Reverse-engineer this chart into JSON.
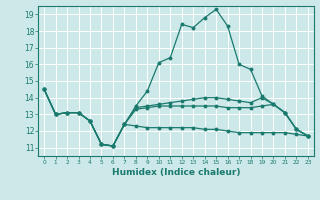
{
  "xlabel": "Humidex (Indice chaleur)",
  "xlim": [
    -0.5,
    23.5
  ],
  "ylim": [
    10.5,
    19.5
  ],
  "xticks": [
    0,
    1,
    2,
    3,
    4,
    5,
    6,
    7,
    8,
    9,
    10,
    11,
    12,
    13,
    14,
    15,
    16,
    17,
    18,
    19,
    20,
    21,
    22,
    23
  ],
  "yticks": [
    11,
    12,
    13,
    14,
    15,
    16,
    17,
    18,
    19
  ],
  "background_color": "#cde8e8",
  "grid_color": "#ffffff",
  "line_color": "#1a7a6e",
  "lines": [
    [
      14.5,
      13.0,
      13.1,
      13.1,
      12.6,
      11.2,
      11.1,
      12.4,
      13.5,
      14.4,
      16.1,
      16.4,
      18.4,
      18.2,
      18.8,
      19.3,
      18.3,
      16.0,
      15.7,
      14.1,
      13.6,
      13.1,
      12.1,
      11.7
    ],
    [
      14.5,
      13.0,
      13.1,
      13.1,
      12.6,
      11.2,
      11.1,
      12.4,
      13.4,
      13.5,
      13.6,
      13.7,
      13.8,
      13.9,
      14.0,
      14.0,
      13.9,
      13.8,
      13.7,
      14.0,
      13.6,
      13.1,
      12.1,
      11.7
    ],
    [
      14.5,
      13.0,
      13.1,
      13.1,
      12.6,
      11.2,
      11.1,
      12.4,
      12.3,
      12.2,
      12.2,
      12.2,
      12.2,
      12.2,
      12.1,
      12.1,
      12.0,
      11.9,
      11.9,
      11.9,
      11.9,
      11.9,
      11.8,
      11.7
    ],
    [
      14.5,
      13.0,
      13.1,
      13.1,
      12.6,
      11.2,
      11.1,
      12.4,
      13.3,
      13.4,
      13.5,
      13.5,
      13.5,
      13.5,
      13.5,
      13.5,
      13.4,
      13.4,
      13.4,
      13.5,
      13.6,
      13.1,
      12.1,
      11.7
    ]
  ]
}
